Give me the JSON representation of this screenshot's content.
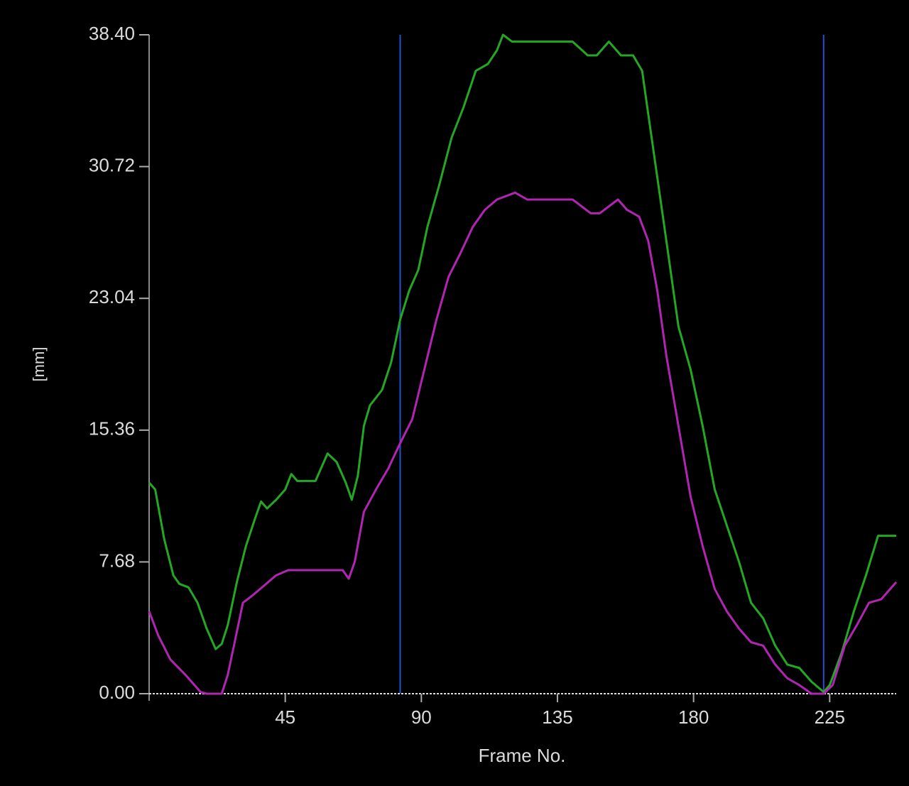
{
  "chart_data": {
    "type": "line",
    "x_label": "Frame No.",
    "y_label": "[mm]",
    "xlim": [
      0,
      247
    ],
    "ylim": [
      0,
      38.4
    ],
    "xticks": [
      45,
      90,
      135,
      180,
      225
    ],
    "yticks": [
      {
        "value": 0,
        "label": "0.00"
      },
      7.68,
      15.36,
      23.04,
      30.72,
      {
        "value": 38.4,
        "label": "38.40"
      }
    ],
    "grid": false,
    "markers": {
      "color": "#2a4fd0",
      "x": [
        83,
        223
      ]
    },
    "series": [
      {
        "color": "#24a824",
        "x": [
          0,
          2,
          5,
          8,
          10,
          13,
          16,
          19,
          22,
          24,
          26,
          29,
          32,
          35,
          37,
          39,
          42,
          45,
          47,
          49,
          55,
          59,
          62,
          65,
          67,
          69,
          71,
          73,
          77,
          80,
          83,
          86,
          89,
          92,
          96,
          100,
          104,
          108,
          112,
          115,
          117,
          120,
          130,
          140,
          145,
          148,
          152,
          156,
          160,
          163,
          165,
          168,
          171,
          175,
          179,
          183,
          187,
          191,
          195,
          199,
          203,
          207,
          211,
          215,
          219,
          223,
          225,
          229,
          233,
          237,
          241,
          247
        ],
        "values": [
          12.3,
          11.9,
          9.0,
          6.9,
          6.4,
          6.2,
          5.3,
          3.8,
          2.6,
          2.9,
          4.0,
          6.5,
          8.6,
          10.2,
          11.2,
          10.8,
          11.3,
          11.9,
          12.8,
          12.4,
          12.4,
          14.0,
          13.5,
          12.3,
          11.3,
          12.7,
          15.6,
          16.8,
          17.7,
          19.3,
          21.8,
          23.5,
          24.7,
          27.2,
          29.7,
          32.4,
          34.2,
          36.3,
          36.7,
          37.5,
          38.4,
          38.0,
          38.0,
          38.0,
          37.2,
          37.2,
          38.0,
          37.2,
          37.2,
          36.3,
          33.8,
          30.1,
          26.4,
          21.4,
          18.9,
          15.6,
          11.9,
          9.8,
          7.7,
          5.3,
          4.4,
          2.8,
          1.7,
          1.5,
          0.7,
          0.1,
          0.5,
          2.4,
          4.8,
          6.9,
          9.2,
          9.2
        ]
      },
      {
        "color": "#b224b2",
        "x": [
          0,
          3,
          7,
          12,
          17,
          19,
          24,
          26,
          29,
          31,
          34,
          38,
          42,
          46,
          55,
          64,
          66,
          68,
          71,
          75,
          79,
          83,
          87,
          91,
          95,
          99,
          103,
          107,
          111,
          115,
          121,
          125,
          140,
          146,
          149,
          155,
          158,
          162,
          165,
          168,
          171,
          175,
          179,
          183,
          187,
          191,
          195,
          199,
          203,
          207,
          211,
          215,
          219,
          223,
          226,
          230,
          234,
          238,
          242,
          247
        ],
        "values": [
          4.8,
          3.4,
          2.0,
          1.1,
          0.1,
          0,
          0,
          1.1,
          3.6,
          5.3,
          5.7,
          6.3,
          6.9,
          7.2,
          7.2,
          7.2,
          6.7,
          7.7,
          10.6,
          11.9,
          13.1,
          14.6,
          16.0,
          18.9,
          21.8,
          24.3,
          25.7,
          27.2,
          28.2,
          28.8,
          29.2,
          28.8,
          28.8,
          28.0,
          28.0,
          28.8,
          28.2,
          27.8,
          26.4,
          23.5,
          19.7,
          15.6,
          11.5,
          8.6,
          6.1,
          4.8,
          3.8,
          3.0,
          2.8,
          1.7,
          0.9,
          0.5,
          0,
          0,
          0.5,
          2.8,
          4.0,
          5.3,
          5.5,
          6.5
        ]
      }
    ]
  }
}
